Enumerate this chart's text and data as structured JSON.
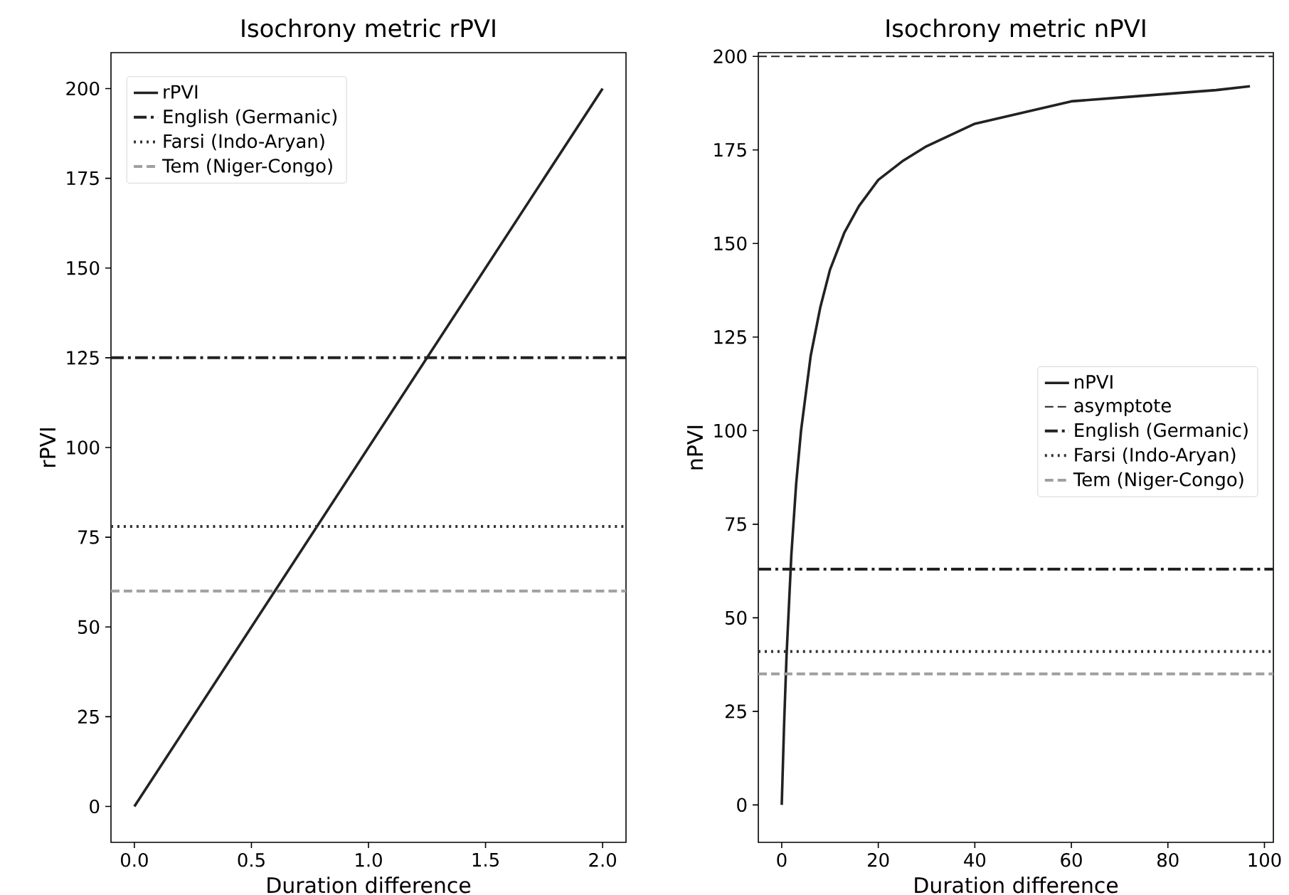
{
  "chart_data": [
    {
      "type": "line",
      "title": "Isochrony metric rPVI",
      "xlabel": "Duration difference",
      "ylabel": "rPVI",
      "series": [
        {
          "name": "rPVI",
          "color": "#222222",
          "x": [
            0,
            2
          ],
          "values": [
            0,
            200
          ]
        }
      ],
      "line_style": "solid",
      "xlim": [
        -0.1,
        2.1
      ],
      "ylim": [
        -10,
        210
      ],
      "xticks": [
        {
          "value": 0,
          "label": "0.0"
        },
        {
          "value": 0.5,
          "label": "0.5"
        },
        {
          "value": 1,
          "label": "1.0"
        },
        {
          "value": 1.5,
          "label": "1.5"
        },
        {
          "value": 2,
          "label": "2.0"
        }
      ],
      "yticks": [
        0,
        25,
        50,
        75,
        100,
        125,
        150,
        175,
        200
      ],
      "ref_lines": [
        {
          "axis": "y",
          "value": 125,
          "label": "English (Germanic)",
          "color": "#222222",
          "line_style": "dashdot"
        },
        {
          "axis": "y",
          "value": 78,
          "label": "Farsi (Indo-Aryan)",
          "color": "#333333",
          "line_style": "dotted"
        },
        {
          "axis": "y",
          "value": 60,
          "label": "Tem (Niger-Congo)",
          "color": "#a0a0a0",
          "line_style": "dashed"
        }
      ],
      "legend": "top left"
    },
    {
      "type": "line",
      "title": "Isochrony metric nPVI",
      "xlabel": "Duration difference",
      "ylabel": "nPVI",
      "series": [
        {
          "name": "nPVI",
          "color": "#222222",
          "x": [
            0,
            0.5,
            1,
            2,
            3,
            4,
            6,
            8,
            10,
            13,
            16,
            20,
            25,
            30,
            40,
            50,
            60,
            70,
            80,
            90,
            97
          ],
          "values": [
            0,
            22,
            40,
            67,
            86,
            100,
            120,
            133,
            143,
            153,
            160,
            167,
            172,
            176,
            182,
            185,
            188,
            189,
            190,
            191,
            192
          ]
        }
      ],
      "line_style": "solid",
      "xlim": [
        -4.85,
        101.85
      ],
      "ylim": [
        -10,
        201
      ],
      "xticks": [
        0,
        20,
        40,
        60,
        80,
        100
      ],
      "yticks": [
        0,
        25,
        50,
        75,
        100,
        125,
        150,
        175,
        200
      ],
      "ref_lines": [
        {
          "axis": "y",
          "value": 200,
          "label": "asymptote",
          "color": "#222222",
          "line_style": "dashed"
        },
        {
          "axis": "y",
          "value": 63,
          "label": "English (Germanic)",
          "color": "#222222",
          "line_style": "dashdot"
        },
        {
          "axis": "y",
          "value": 41,
          "label": "Farsi (Indo-Aryan)",
          "color": "#333333",
          "line_style": "dotted"
        },
        {
          "axis": "y",
          "value": 35,
          "label": "Tem (Niger-Congo)",
          "color": "#a0a0a0",
          "line_style": "dashed"
        }
      ],
      "legend": "right"
    }
  ]
}
